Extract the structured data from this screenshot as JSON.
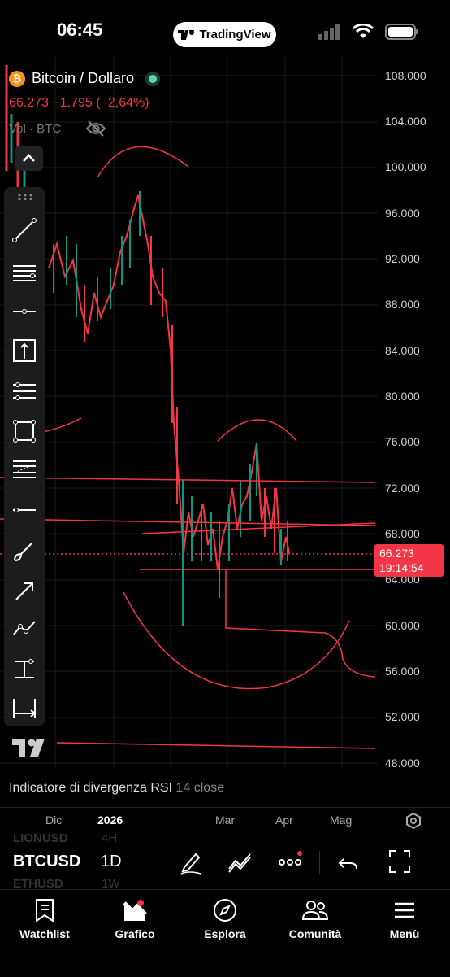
{
  "status_bar": {
    "time": "06:45",
    "app_badge": "TradingView"
  },
  "header": {
    "symbol_name": "Bitcoin / Dollaro",
    "price": "66.273",
    "change": "−1.795",
    "change_pct": "(−2,64%)",
    "volume_label": "Vol · BTC"
  },
  "y_axis": {
    "labels": [
      "108.000",
      "104.000",
      "100.000",
      "96.000",
      "92.000",
      "88.000",
      "84.000",
      "80.000",
      "76.000",
      "72.000",
      "68.000",
      "64.000",
      "60.000",
      "56.000",
      "52.000",
      "48.000"
    ]
  },
  "price_tag": {
    "price": "66.273",
    "countdown": "19:14:54"
  },
  "indicator": {
    "name": "Indicatore di divergenza RSI",
    "params": "14 close"
  },
  "x_axis": {
    "labels": [
      "Dic",
      "2026",
      "Mar",
      "Apr",
      "Mag"
    ]
  },
  "symbol_bar": {
    "symbol": "BTCUSD",
    "interval": "1D",
    "ghost_above": "LIONUSD",
    "ghost_above_interval": "4H",
    "ghost_below": "ETHUSD",
    "ghost_below_interval": "1W"
  },
  "colors": {
    "down": "#f23645",
    "up": "#089981",
    "background": "#000000"
  },
  "toolbar_icons": [
    "trend-line-icon",
    "pitchfork-icon",
    "horizontal-ray-icon",
    "fib-retracement-icon",
    "parallel-channel-icon",
    "rectangle-icon",
    "gann-icon",
    "horizontal-line-icon",
    "brush-icon",
    "arrow-icon",
    "path-icon",
    "long-position-icon",
    "date-range-icon"
  ],
  "bottom_nav": [
    {
      "label": "Watchlist",
      "icon": "bookmark-icon"
    },
    {
      "label": "Grafico",
      "icon": "chart-icon"
    },
    {
      "label": "Esplora",
      "icon": "compass-icon"
    },
    {
      "label": "Comunità",
      "icon": "community-icon"
    },
    {
      "label": "Menù",
      "icon": "menu-icon"
    }
  ]
}
